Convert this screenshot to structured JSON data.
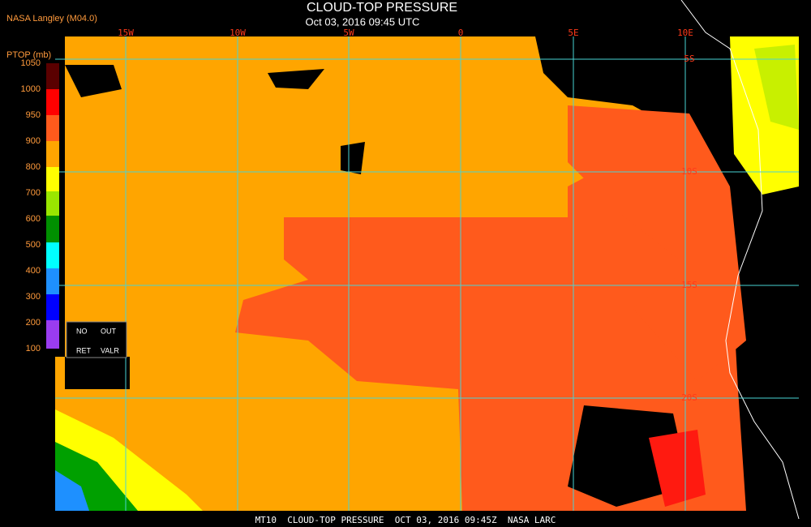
{
  "header": {
    "title": "CLOUD-TOP PRESSURE",
    "subtitle": "Oct 03, 2016 09:45 UTC",
    "source": "NASA Langley (M04.0)"
  },
  "legend": {
    "title": "PTOP (mb)",
    "labels": [
      "1050",
      "1000",
      "950",
      "900",
      "800",
      "700",
      "600",
      "500",
      "400",
      "300",
      "200",
      "100"
    ],
    "no_data": [
      "NO",
      "OUT",
      "RET",
      "VALR"
    ]
  },
  "map": {
    "lon_labels": [
      "15W",
      "10W",
      "5W",
      "0",
      "5E",
      "10E"
    ],
    "lat_labels": [
      "5S",
      "10S",
      "15S",
      "20S"
    ]
  },
  "footer": {
    "text": "MT10  CLOUD-TOP PRESSURE  OCT 03, 2016 09:45Z  NASA LARC"
  }
}
